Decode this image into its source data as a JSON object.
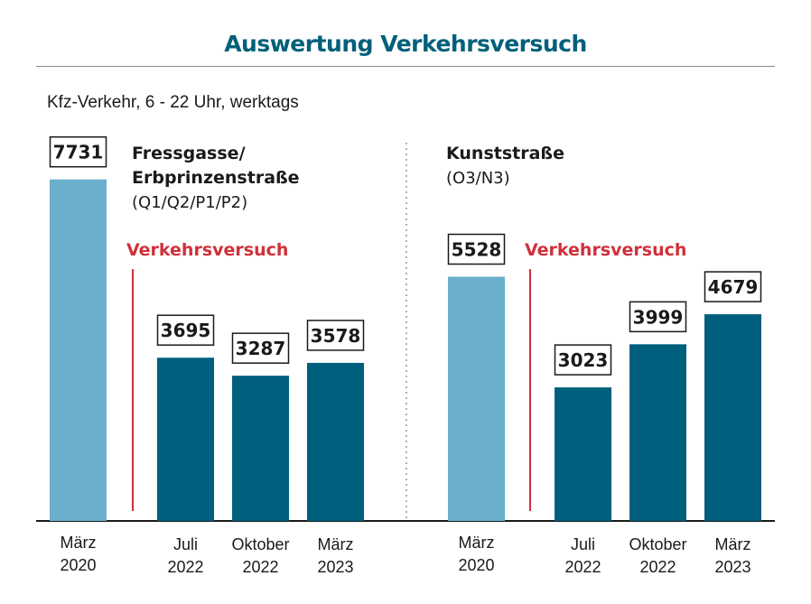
{
  "title": "Auswertung Verkehrsversuch",
  "subtitle": "Kfz-Verkehr, 6 - 22 Uhr, werktags",
  "colors": {
    "title": "#00607a",
    "before_bar": "#6aafcc",
    "trial_bar": "#005f7d",
    "trial_marker": "#d0303a",
    "axis": "#1a1a1a",
    "divider": "#999999"
  },
  "chart_data": [
    {
      "type": "bar",
      "title_lines": [
        "Fressgasse/",
        "Erbprinzenstraße"
      ],
      "subtitle": "(Q1/Q2/P1/P2)",
      "marker_label": "Verkehrsversuch",
      "categories": [
        [
          "März",
          "2020"
        ],
        [
          "Juli",
          "2022"
        ],
        [
          "Oktober",
          "2022"
        ],
        [
          "März",
          "2023"
        ]
      ],
      "values": [
        7731,
        3695,
        3287,
        3578
      ],
      "phase": [
        "before",
        "trial",
        "trial",
        "trial"
      ],
      "ylim": [
        0,
        8000
      ]
    },
    {
      "type": "bar",
      "title_lines": [
        "Kunststraße"
      ],
      "subtitle": "(O3/N3)",
      "marker_label": "Verkehrsversuch",
      "categories": [
        [
          "März",
          "2020"
        ],
        [
          "Juli",
          "2022"
        ],
        [
          "Oktober",
          "2022"
        ],
        [
          "März",
          "2023"
        ]
      ],
      "values": [
        5528,
        3023,
        3999,
        4679
      ],
      "phase": [
        "before",
        "trial",
        "trial",
        "trial"
      ],
      "ylim": [
        0,
        8000
      ]
    }
  ]
}
